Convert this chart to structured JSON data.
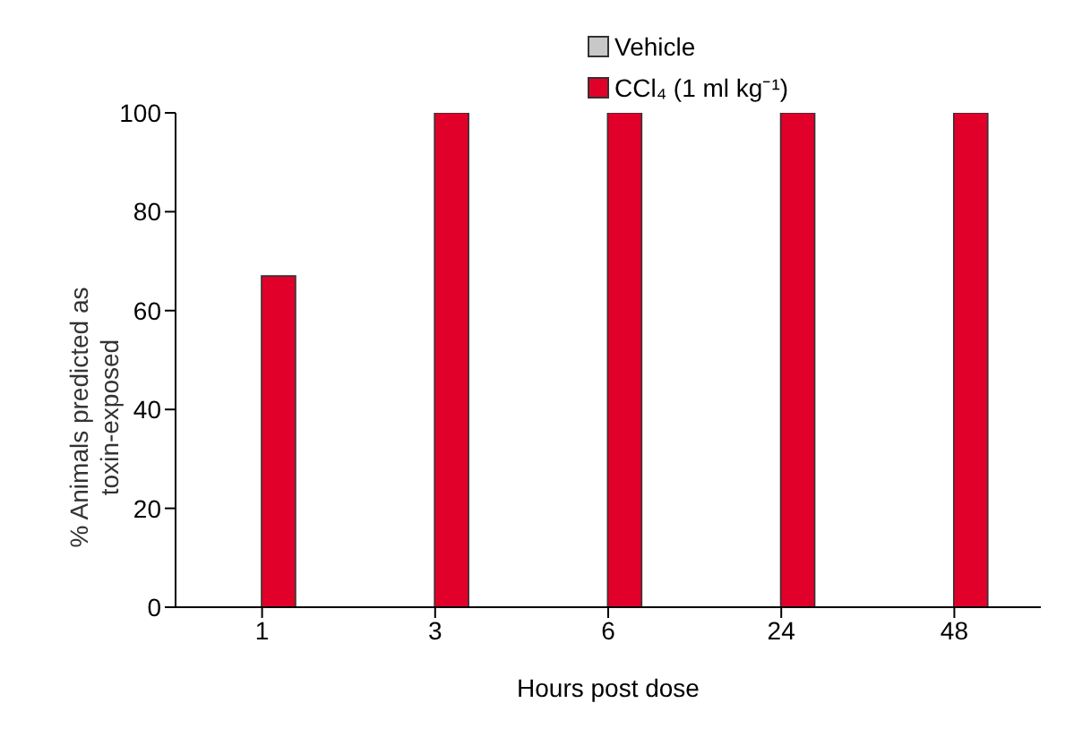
{
  "chart_data": {
    "type": "bar",
    "xlabel": "Hours post dose",
    "ylabel": "% Animals predicted as toxin-exposed",
    "categories": [
      "1",
      "3",
      "6",
      "24",
      "48"
    ],
    "series": [
      {
        "name": "Vehicle",
        "color": "#c8c8c8",
        "values": [
          0,
          0,
          0,
          0,
          0
        ]
      },
      {
        "name": "CCl₄ (1 ml kg⁻¹)",
        "color": "#e0002a",
        "values": [
          67,
          100,
          100,
          100,
          100
        ]
      }
    ],
    "ylim": [
      0,
      100
    ],
    "yticks": [
      0,
      20,
      40,
      60,
      80,
      100
    ],
    "grid": false,
    "legend": "top right"
  }
}
